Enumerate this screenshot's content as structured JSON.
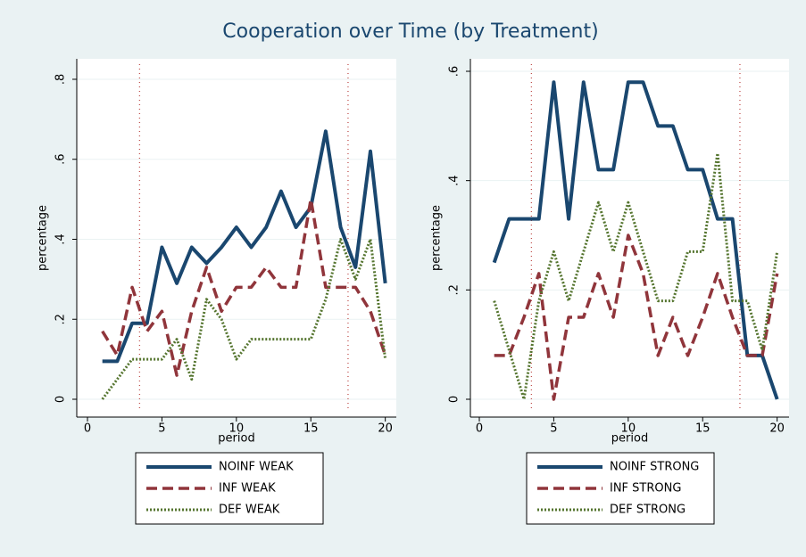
{
  "title": "Cooperation over Time (by Treatment)",
  "chart_data": [
    {
      "type": "line",
      "xlabel": "period",
      "ylabel": "percentage",
      "xlim": [
        0,
        20.8
      ],
      "xticks": [
        0,
        5,
        10,
        15,
        20
      ],
      "ylim": [
        0,
        0.82
      ],
      "yticks": [
        {
          "value": 0,
          "label": "0"
        },
        {
          "value": 0.2,
          "label": ".2"
        },
        {
          "value": 0.4,
          "label": ".4"
        },
        {
          "value": 0.6,
          "label": ".6"
        },
        {
          "value": 0.8,
          "label": ".8"
        }
      ],
      "grid": true,
      "xlines": [
        3.5,
        17.5
      ],
      "x": [
        1,
        2,
        3,
        4,
        5,
        6,
        7,
        8,
        9,
        10,
        11,
        12,
        13,
        14,
        15,
        16,
        17,
        18,
        19,
        20
      ],
      "series": [
        {
          "name": "NOINF WEAK",
          "color": "#1a476f",
          "dash": "solid",
          "values": [
            0.095,
            0.095,
            0.19,
            0.19,
            0.38,
            0.29,
            0.38,
            0.34,
            0.38,
            0.43,
            0.38,
            0.43,
            0.52,
            0.43,
            0.48,
            0.67,
            0.43,
            0.33,
            0.62,
            0.29
          ]
        },
        {
          "name": "INF WEAK",
          "color": "#90353b",
          "dash": "dash",
          "values": [
            0.17,
            0.11,
            0.28,
            0.17,
            0.22,
            0.06,
            0.22,
            0.33,
            0.22,
            0.28,
            0.28,
            0.33,
            0.28,
            0.28,
            0.5,
            0.28,
            0.28,
            0.28,
            0.22,
            0.11
          ]
        },
        {
          "name": "DEF WEAK",
          "color": "#55752f",
          "dash": "dot",
          "values": [
            0,
            0.05,
            0.1,
            0.1,
            0.1,
            0.15,
            0.05,
            0.25,
            0.2,
            0.1,
            0.15,
            0.15,
            0.15,
            0.15,
            0.15,
            0.25,
            0.4,
            0.3,
            0.4,
            0.1
          ]
        }
      ]
    },
    {
      "type": "line",
      "xlabel": "period",
      "ylabel": "percentage",
      "xlim": [
        0,
        20.8
      ],
      "xticks": [
        0,
        5,
        10,
        15,
        20
      ],
      "ylim": [
        0,
        0.6
      ],
      "yticks": [
        {
          "value": 0,
          "label": "0"
        },
        {
          "value": 0.2,
          "label": ".2"
        },
        {
          "value": 0.4,
          "label": ".4"
        },
        {
          "value": 0.6,
          "label": ".6"
        }
      ],
      "grid": true,
      "xlines": [
        3.5,
        17.5
      ],
      "x": [
        1,
        2,
        3,
        4,
        5,
        6,
        7,
        8,
        9,
        10,
        11,
        12,
        13,
        14,
        15,
        16,
        17,
        18,
        19,
        20
      ],
      "series": [
        {
          "name": "NOINF STRONG",
          "color": "#1a476f",
          "dash": "solid",
          "values": [
            0.25,
            0.33,
            0.33,
            0.33,
            0.58,
            0.33,
            0.58,
            0.42,
            0.42,
            0.58,
            0.58,
            0.5,
            0.5,
            0.42,
            0.42,
            0.33,
            0.33,
            0.08,
            0.08,
            0
          ]
        },
        {
          "name": "INF STRONG",
          "color": "#90353b",
          "dash": "dash",
          "values": [
            0.08,
            0.08,
            0.15,
            0.23,
            0,
            0.15,
            0.15,
            0.23,
            0.15,
            0.3,
            0.23,
            0.08,
            0.15,
            0.08,
            0.15,
            0.23,
            0.15,
            0.08,
            0.08,
            0.23
          ]
        },
        {
          "name": "DEF STRONG",
          "color": "#55752f",
          "dash": "dot",
          "values": [
            0.18,
            0.09,
            0,
            0.18,
            0.27,
            0.18,
            0.27,
            0.36,
            0.27,
            0.36,
            0.27,
            0.18,
            0.18,
            0.27,
            0.27,
            0.45,
            0.18,
            0.18,
            0.09,
            0.27
          ]
        }
      ]
    }
  ]
}
